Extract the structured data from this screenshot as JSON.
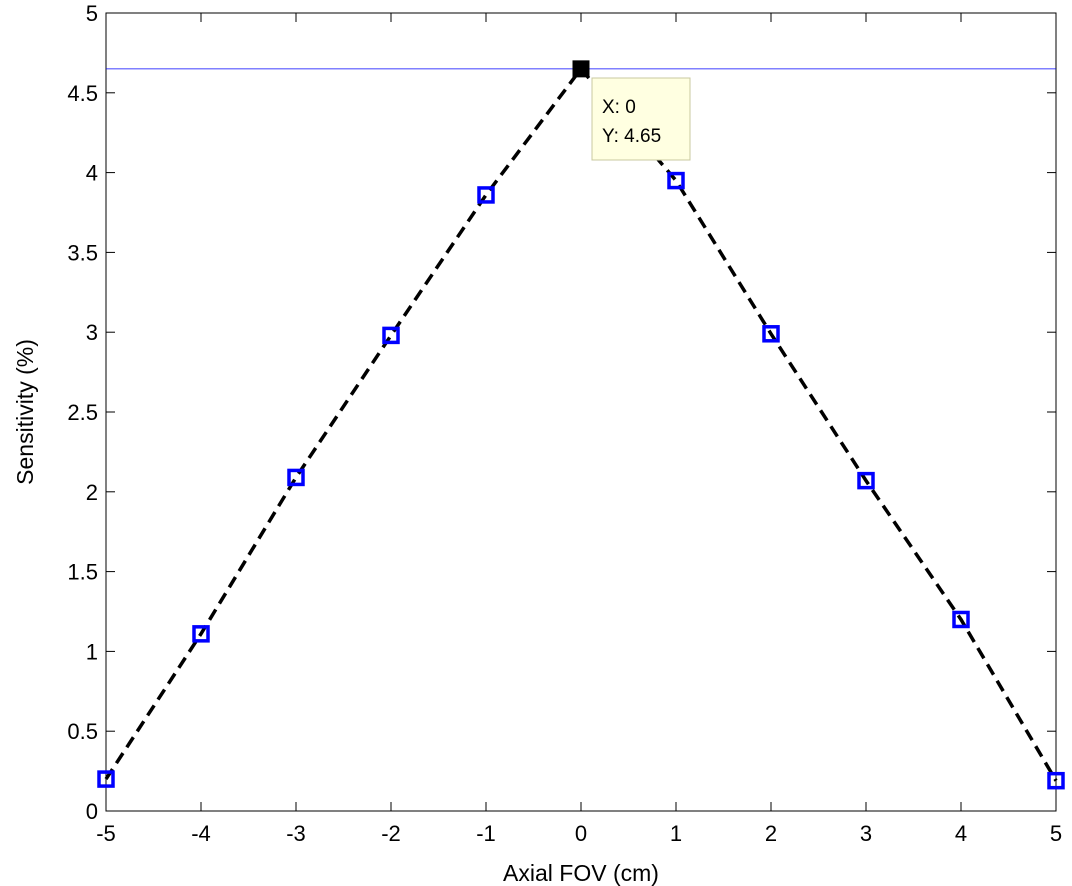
{
  "chart_data": {
    "type": "line",
    "title": "",
    "xlabel": "Axial FOV (cm)",
    "ylabel": "Sensitivity (%)",
    "xlim": [
      -5,
      5
    ],
    "ylim": [
      0,
      5
    ],
    "x_ticks": [
      -5,
      -4,
      -3,
      -2,
      -1,
      0,
      1,
      2,
      3,
      4,
      5
    ],
    "y_ticks": [
      0,
      0.5,
      1,
      1.5,
      2,
      2.5,
      3,
      3.5,
      4,
      4.5,
      5
    ],
    "x_tick_labels": [
      "-5",
      "-4",
      "-3",
      "-2",
      "-1",
      "0",
      "1",
      "2",
      "3",
      "4",
      "5"
    ],
    "y_tick_labels": [
      "0",
      "0.5",
      "1",
      "1.5",
      "2",
      "2.5",
      "3",
      "3.5",
      "4",
      "4.5",
      "5"
    ],
    "grid": false,
    "series": [
      {
        "x": [
          -5,
          -4,
          -3,
          -2,
          -1,
          0,
          1,
          2,
          3,
          4,
          5
        ],
        "y": [
          0.2,
          1.11,
          2.09,
          2.98,
          3.86,
          4.65,
          3.95,
          2.99,
          2.07,
          1.2,
          0.19
        ],
        "line_style": "dashed",
        "line_color": "#000000",
        "marker": "square",
        "marker_color": "#0000ff"
      }
    ],
    "reference_line": {
      "y": 4.65,
      "color": "#0000ff"
    },
    "datatip": {
      "x_value": 0,
      "y_value": 4.65,
      "lines": [
        "X: 0",
        "Y: 4.65"
      ],
      "background": "#ffffe1"
    }
  }
}
